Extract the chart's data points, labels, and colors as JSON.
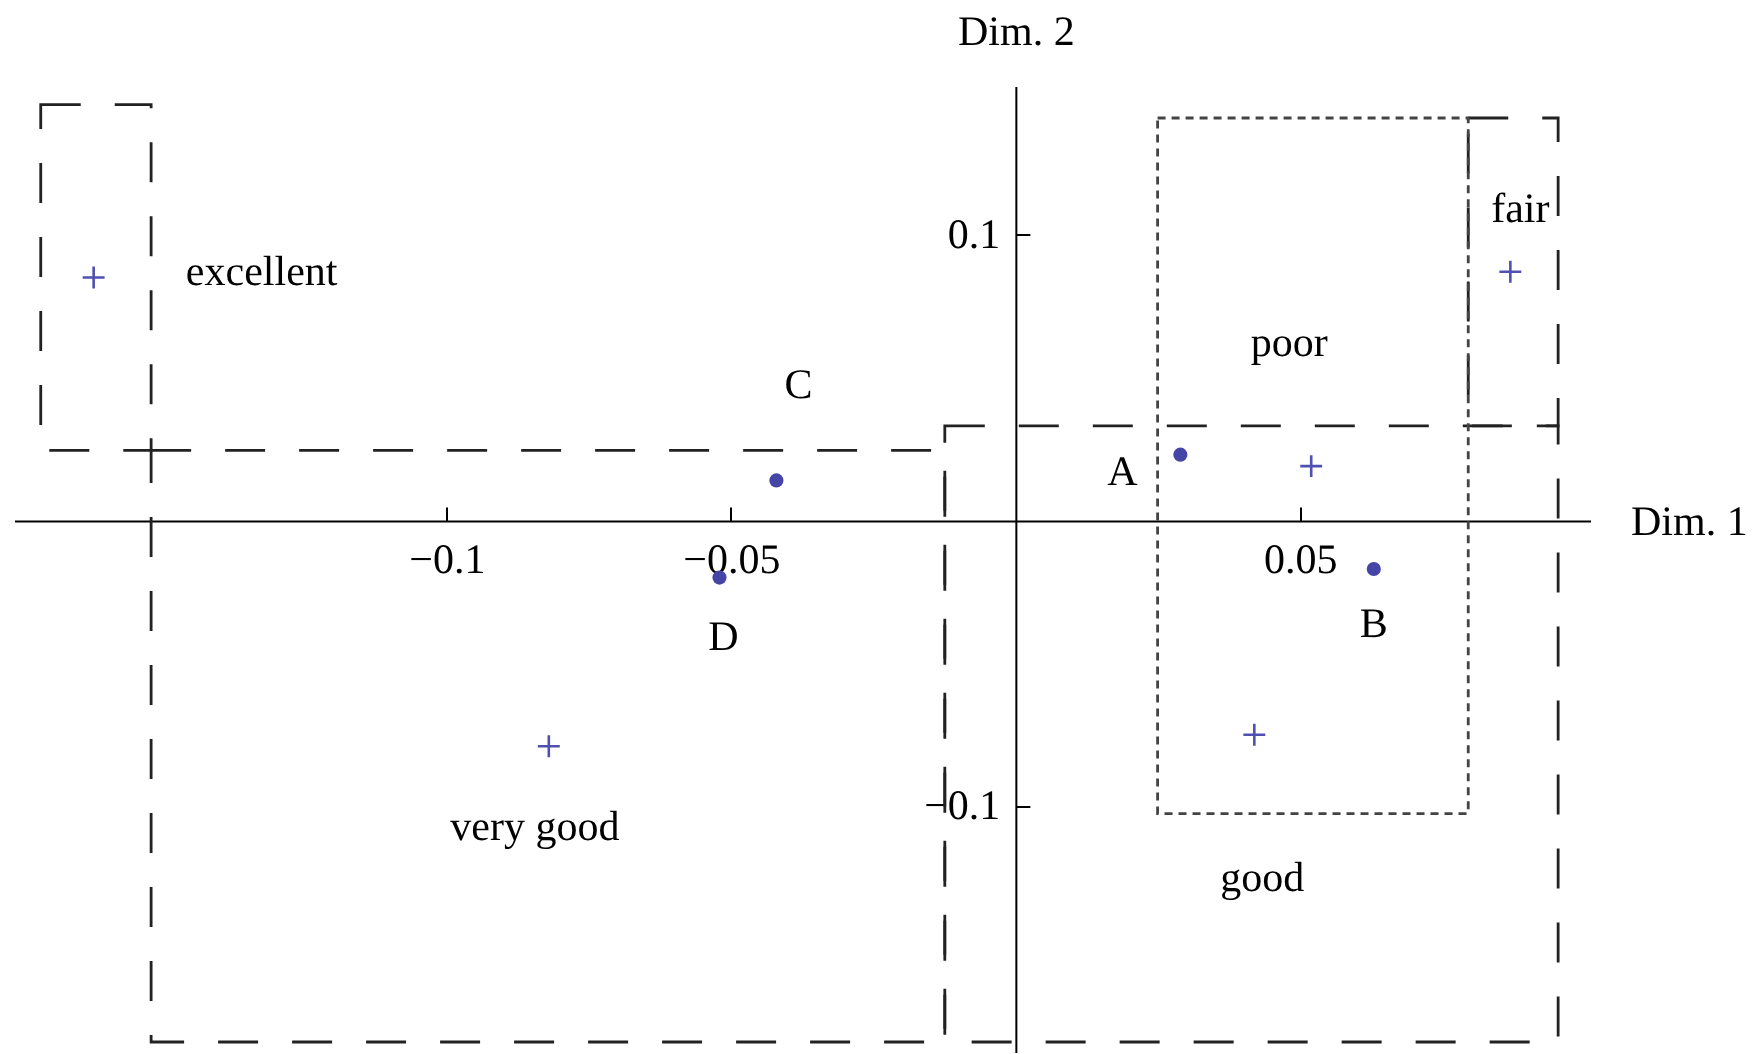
{
  "chart_data": {
    "type": "scatter",
    "xlabel": "Dim. 1",
    "ylabel": "Dim. 2",
    "xlim": [
      -0.176,
      0.101
    ],
    "ylim": [
      -0.186,
      0.152
    ],
    "xticks": [
      -0.1,
      -0.05,
      0.05
    ],
    "yticks": [
      -0.1,
      0.1
    ],
    "series": [
      {
        "color": "#4545a8",
        "marker": "circle",
        "x": [
          0.029,
          0.063,
          -0.042,
          -0.052
        ],
        "values": [
          0.023,
          -0.017,
          0.014,
          -0.02
        ]
      },
      {
        "color": "#5050b0",
        "marker": "cross",
        "x": [
          -0.162,
          -0.082,
          0.042,
          0.052,
          0.087
        ],
        "values": [
          0.085,
          -0.079,
          -0.075,
          0.019,
          0.087
        ]
      }
    ],
    "annotations": [
      {
        "text": "A",
        "x": 0.029,
        "y": 0.023
      },
      {
        "text": "B",
        "x": 0.063,
        "y": -0.017
      },
      {
        "text": "C",
        "x": -0.042,
        "y": 0.014
      },
      {
        "text": "D",
        "x": -0.052,
        "y": -0.02
      },
      {
        "text": "excellent",
        "x": -0.162,
        "y": 0.085
      },
      {
        "text": "very good",
        "x": -0.082,
        "y": -0.079
      },
      {
        "text": "good",
        "x": 0.042,
        "y": -0.075
      },
      {
        "text": "poor",
        "x": 0.052,
        "y": 0.019
      },
      {
        "text": "fair",
        "x": 0.087,
        "y": 0.087
      }
    ]
  }
}
